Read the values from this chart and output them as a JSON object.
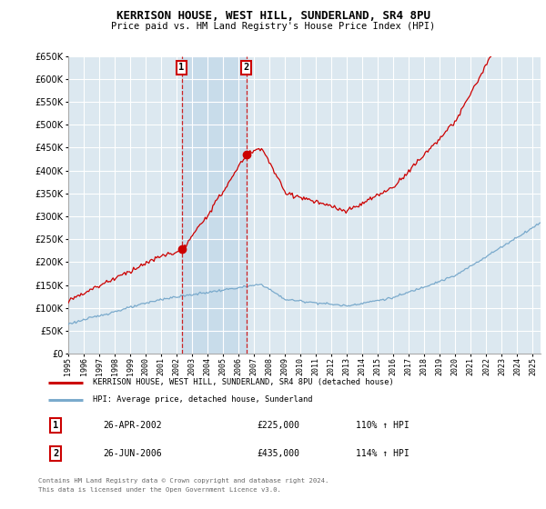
{
  "title": "KERRISON HOUSE, WEST HILL, SUNDERLAND, SR4 8PU",
  "subtitle": "Price paid vs. HM Land Registry's House Price Index (HPI)",
  "background_color": "#ffffff",
  "plot_bg_color": "#dce8f0",
  "grid_color": "#ffffff",
  "ylim": [
    0,
    650000
  ],
  "yticks": [
    0,
    50000,
    100000,
    150000,
    200000,
    250000,
    300000,
    350000,
    400000,
    450000,
    500000,
    550000,
    600000,
    650000
  ],
  "xlim_start": 1995.0,
  "xlim_end": 2025.5,
  "sale1_year": 2002.32,
  "sale1_price": 225000,
  "sale1_label": "1",
  "sale1_date": "26-APR-2002",
  "sale1_hpi": "110% ↑ HPI",
  "sale2_year": 2006.49,
  "sale2_price": 435000,
  "sale2_label": "2",
  "sale2_date": "26-JUN-2006",
  "sale2_hpi": "114% ↑ HPI",
  "legend_line1": "KERRISON HOUSE, WEST HILL, SUNDERLAND, SR4 8PU (detached house)",
  "legend_line2": "HPI: Average price, detached house, Sunderland",
  "footer1": "Contains HM Land Registry data © Crown copyright and database right 2024.",
  "footer2": "This data is licensed under the Open Government Licence v3.0.",
  "red_color": "#cc0000",
  "blue_color": "#7aaacc",
  "shade_color": "#c8dcea",
  "dot_color": "#cc0000"
}
